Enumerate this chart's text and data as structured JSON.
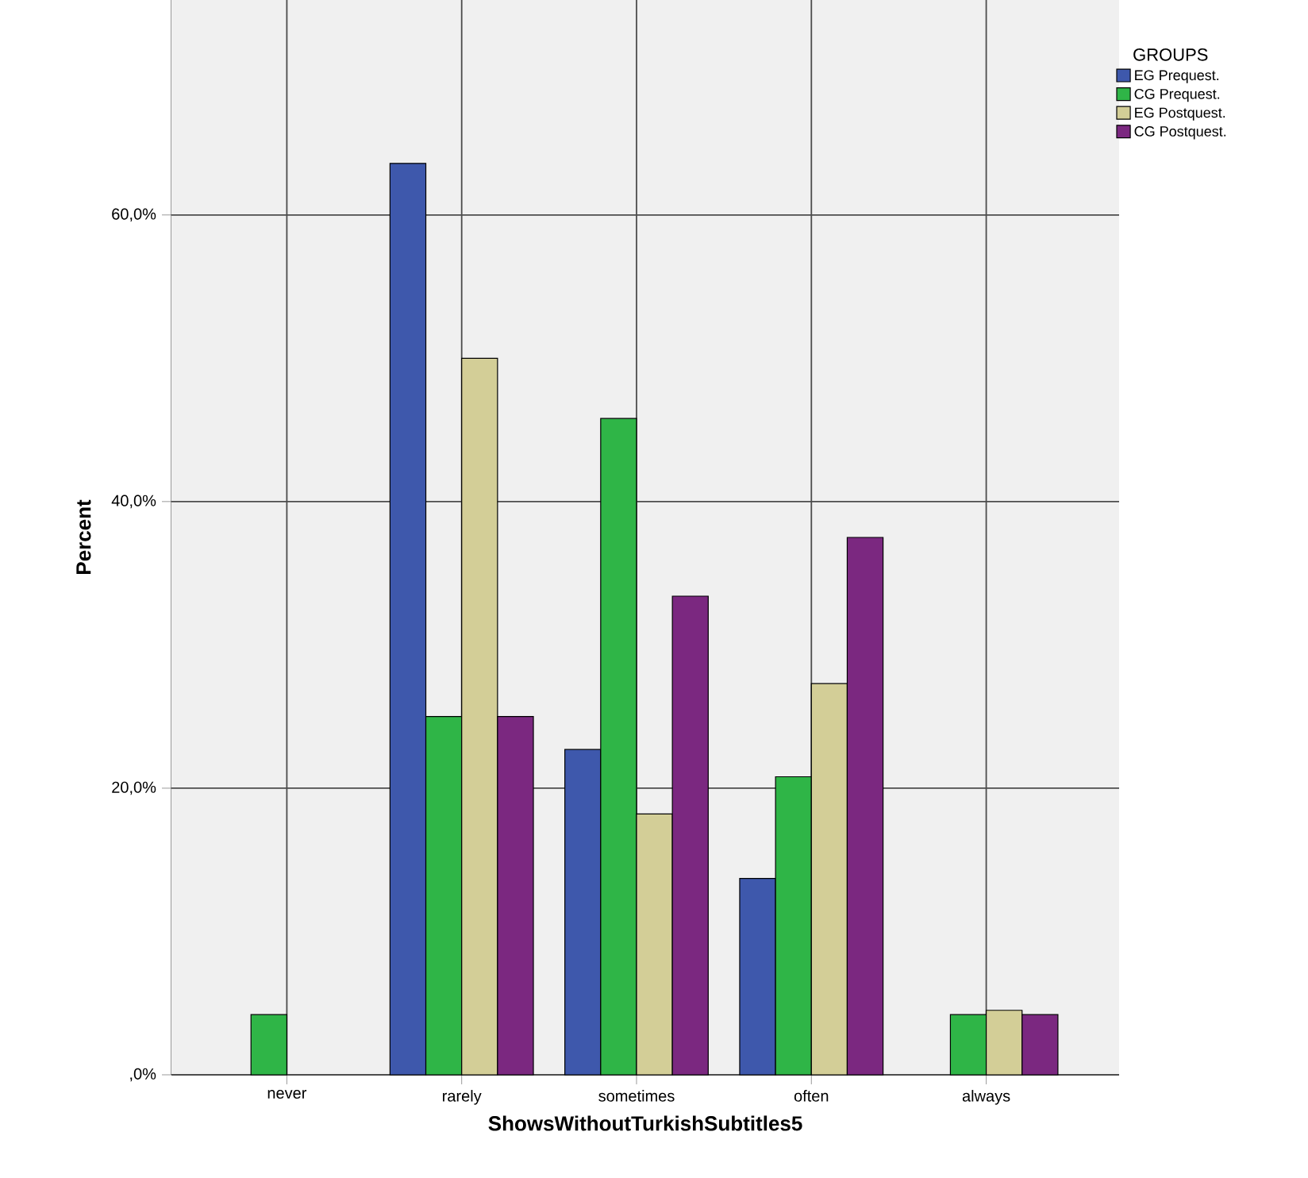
{
  "chart_data": {
    "type": "bar",
    "xlabel": "ShowsWithoutTurkishSubtitles5",
    "ylabel": "Percent",
    "legend_title": "GROUPS",
    "categories": [
      "never",
      "rarely",
      "sometimes",
      "often",
      "always"
    ],
    "series": [
      {
        "name": "EG Prequest.",
        "color": "#3e58ac",
        "values": [
          null,
          63.6,
          22.7,
          13.7,
          null
        ]
      },
      {
        "name": "CG Prequest.",
        "color": "#2fb547",
        "values": [
          4.2,
          25.0,
          45.8,
          20.8,
          4.2
        ]
      },
      {
        "name": "EG Postquest.",
        "color": "#d3ce97",
        "values": [
          null,
          50.0,
          18.2,
          27.3,
          4.5
        ]
      },
      {
        "name": "CG Postquest.",
        "color": "#7b2880",
        "values": [
          null,
          25.0,
          33.4,
          37.5,
          4.2
        ]
      }
    ],
    "ylim": [
      0,
      75
    ],
    "yticks": [
      {
        "value": 0,
        "label": ",0%"
      },
      {
        "value": 20,
        "label": "20,0%"
      },
      {
        "value": 40,
        "label": "40,0%"
      },
      {
        "value": 60,
        "label": "60,0%"
      }
    ],
    "grid": true,
    "legend": "top right"
  }
}
